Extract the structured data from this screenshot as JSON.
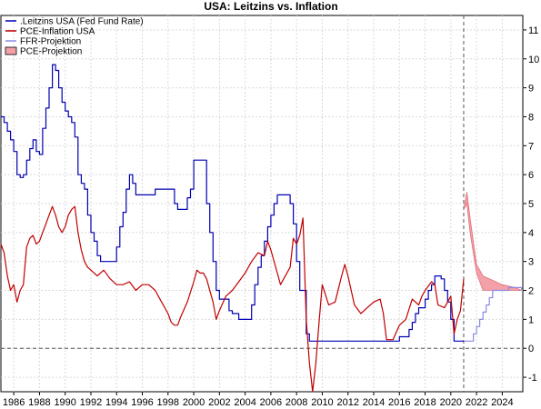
{
  "chart_data": {
    "type": "line",
    "title": "USA: Leitzins vs. Inflation",
    "xlabel": "",
    "ylabel": "",
    "xlim": [
      1985.0,
      2025.6
    ],
    "ylim": [
      -1.5,
      11.5
    ],
    "y_ticks": [
      -1,
      0,
      1,
      2,
      3,
      4,
      5,
      6,
      7,
      8,
      9,
      10,
      11
    ],
    "x_ticks": [
      1986,
      1988,
      1990,
      1992,
      1994,
      1996,
      1998,
      2000,
      2002,
      2004,
      2006,
      2008,
      2010,
      2012,
      2014,
      2016,
      2018,
      2020,
      2022,
      2024
    ],
    "y_axis_position": "right",
    "grid": true,
    "reference_lines": [
      {
        "axis": "y",
        "value": 0,
        "style": "dashed"
      },
      {
        "axis": "x",
        "value": 2021.0,
        "style": "dashed"
      }
    ],
    "legend": {
      "placement": "top-left",
      "entries": [
        {
          "label": ".Leitzins USA (Fed Fund Rate)",
          "color": "#0000b4",
          "kind": "line"
        },
        {
          "label": "PCE-Inflation USA",
          "color": "#c00000",
          "kind": "line"
        },
        {
          "label": "FFR-Projektion",
          "color": "#8a8ae6",
          "kind": "line"
        },
        {
          "label": "PCE-Projektion",
          "color": "#f4a0a8",
          "kind": "area"
        }
      ]
    },
    "series": [
      {
        "name": ".Leitzins USA (Fed Fund Rate)",
        "color": "#0000b4",
        "step": true,
        "x": [
          1985.0,
          1985.25,
          1985.5,
          1985.75,
          1986.0,
          1986.25,
          1986.5,
          1986.75,
          1987.0,
          1987.25,
          1987.5,
          1987.75,
          1988.0,
          1988.25,
          1988.5,
          1988.75,
          1989.0,
          1989.25,
          1989.5,
          1989.75,
          1990.0,
          1990.25,
          1990.5,
          1990.75,
          1991.0,
          1991.25,
          1991.5,
          1991.75,
          1992.0,
          1992.25,
          1992.5,
          1992.75,
          1993.0,
          1994.0,
          1994.25,
          1994.5,
          1994.75,
          1995.0,
          1995.25,
          1995.5,
          1996.0,
          1997.0,
          1997.25,
          1998.0,
          1998.5,
          1998.75,
          1999.0,
          1999.5,
          1999.75,
          2000.0,
          2000.25,
          2000.5,
          2001.0,
          2001.25,
          2001.5,
          2001.75,
          2002.0,
          2002.75,
          2003.0,
          2003.5,
          2004.0,
          2004.5,
          2004.75,
          2005.0,
          2005.25,
          2005.5,
          2005.75,
          2006.0,
          2006.25,
          2006.5,
          2007.0,
          2007.5,
          2007.75,
          2008.0,
          2008.25,
          2008.5,
          2008.75,
          2009.0,
          2015.75,
          2016.0,
          2016.75,
          2017.0,
          2017.25,
          2017.5,
          2017.75,
          2018.0,
          2018.25,
          2018.5,
          2018.75,
          2019.0,
          2019.25,
          2019.5,
          2019.75,
          2020.0,
          2020.25,
          2021.0
        ],
        "y": [
          8.0,
          7.8,
          7.5,
          7.2,
          6.8,
          6.0,
          5.9,
          6.0,
          6.5,
          6.9,
          7.2,
          6.8,
          6.7,
          7.6,
          8.3,
          9.0,
          9.8,
          9.6,
          9.0,
          8.5,
          8.2,
          8.0,
          7.8,
          7.3,
          6.0,
          5.7,
          5.5,
          4.6,
          4.0,
          3.7,
          3.2,
          3.0,
          3.0,
          3.5,
          4.2,
          4.7,
          5.5,
          6.0,
          5.7,
          5.3,
          5.3,
          5.5,
          5.5,
          5.5,
          5.0,
          4.8,
          4.8,
          5.2,
          5.5,
          6.5,
          6.5,
          6.5,
          5.0,
          4.0,
          3.0,
          2.0,
          1.7,
          1.3,
          1.2,
          1.0,
          1.0,
          1.5,
          2.2,
          2.8,
          3.2,
          3.7,
          4.2,
          4.6,
          5.0,
          5.3,
          5.3,
          5.0,
          4.3,
          3.0,
          2.0,
          2.0,
          0.5,
          0.25,
          0.25,
          0.4,
          0.65,
          0.9,
          1.2,
          1.4,
          1.4,
          1.7,
          2.0,
          2.2,
          2.5,
          2.5,
          2.4,
          2.0,
          1.6,
          1.0,
          0.25,
          0.25
        ]
      },
      {
        "name": "PCE-Inflation USA",
        "color": "#c00000",
        "x": [
          1985.0,
          1985.25,
          1985.5,
          1985.75,
          1986.0,
          1986.25,
          1986.5,
          1986.75,
          1987.0,
          1987.25,
          1987.5,
          1987.75,
          1988.0,
          1988.25,
          1988.5,
          1988.75,
          1989.0,
          1989.25,
          1989.5,
          1989.75,
          1990.0,
          1990.25,
          1990.5,
          1990.75,
          1991.0,
          1991.25,
          1991.5,
          1991.75,
          1992.0,
          1992.5,
          1993.0,
          1993.5,
          1994.0,
          1994.5,
          1995.0,
          1995.5,
          1996.0,
          1996.5,
          1997.0,
          1997.5,
          1998.0,
          1998.25,
          1998.5,
          1998.75,
          1999.0,
          1999.5,
          2000.0,
          2000.25,
          2000.5,
          2000.75,
          2001.0,
          2001.5,
          2001.75,
          2002.0,
          2002.5,
          2003.0,
          2003.5,
          2004.0,
          2004.5,
          2005.0,
          2005.5,
          2005.75,
          2006.0,
          2006.5,
          2006.75,
          2007.0,
          2007.5,
          2007.75,
          2008.0,
          2008.25,
          2008.5,
          2008.75,
          2009.0,
          2009.25,
          2009.5,
          2009.75,
          2010.0,
          2010.5,
          2011.0,
          2011.5,
          2011.75,
          2012.0,
          2012.5,
          2013.0,
          2013.5,
          2014.0,
          2014.5,
          2014.75,
          2015.0,
          2015.5,
          2016.0,
          2016.5,
          2017.0,
          2017.5,
          2017.75,
          2018.0,
          2018.5,
          2018.75,
          2019.0,
          2019.5,
          2020.0,
          2020.25,
          2020.5,
          2020.75,
          2021.0
        ],
        "y": [
          3.6,
          3.3,
          2.5,
          2.0,
          2.2,
          1.6,
          2.0,
          2.2,
          3.5,
          3.8,
          3.9,
          3.6,
          3.7,
          4.0,
          4.3,
          4.6,
          4.9,
          4.6,
          4.2,
          4.0,
          4.2,
          4.6,
          4.8,
          4.9,
          4.0,
          3.4,
          3.0,
          2.8,
          2.7,
          2.5,
          2.7,
          2.4,
          2.2,
          2.2,
          2.3,
          2.0,
          2.2,
          2.2,
          2.0,
          1.6,
          1.2,
          0.9,
          0.8,
          0.8,
          1.1,
          1.6,
          2.3,
          2.7,
          2.6,
          2.6,
          2.4,
          1.6,
          1.0,
          1.3,
          1.8,
          2.0,
          2.3,
          2.6,
          3.0,
          3.3,
          3.2,
          3.7,
          3.4,
          2.6,
          2.2,
          2.4,
          2.8,
          3.8,
          3.6,
          3.9,
          4.5,
          1.0,
          -0.5,
          -1.5,
          -0.5,
          0.9,
          2.2,
          1.5,
          1.6,
          2.5,
          2.9,
          2.5,
          1.5,
          1.2,
          1.4,
          1.6,
          1.7,
          1.2,
          0.3,
          0.3,
          0.8,
          1.0,
          1.7,
          1.5,
          1.8,
          2.0,
          2.3,
          2.2,
          1.5,
          1.4,
          1.8,
          0.5,
          1.0,
          1.3,
          2.4
        ]
      },
      {
        "name": "FFR-Projektion",
        "color": "#8a8ae6",
        "step": true,
        "x": [
          2021.0,
          2021.25,
          2021.75,
          2022.0,
          2022.25,
          2022.5,
          2022.75,
          2023.0,
          2023.25,
          2023.5,
          2023.75,
          2024.0,
          2024.5,
          2025.0,
          2025.5
        ],
        "y": [
          0.25,
          0.25,
          0.5,
          0.75,
          1.0,
          1.25,
          1.5,
          1.75,
          2.0,
          2.0,
          2.0,
          2.0,
          2.1,
          2.1,
          2.0
        ]
      },
      {
        "name": "PCE-Projektion",
        "color": "#f4a0a8",
        "kind": "band",
        "x": [
          2021.0,
          2021.25,
          2021.5,
          2022.0,
          2022.5,
          2023.0,
          2023.5,
          2024.0,
          2024.5,
          2025.0,
          2025.5
        ],
        "upper": [
          4.8,
          5.4,
          4.5,
          2.9,
          2.5,
          2.4,
          2.3,
          2.2,
          2.15,
          2.1,
          2.0
        ],
        "lower": [
          4.8,
          5.0,
          4.0,
          2.6,
          2.0,
          2.0,
          2.0,
          2.0,
          2.0,
          2.0,
          2.0
        ]
      }
    ]
  }
}
